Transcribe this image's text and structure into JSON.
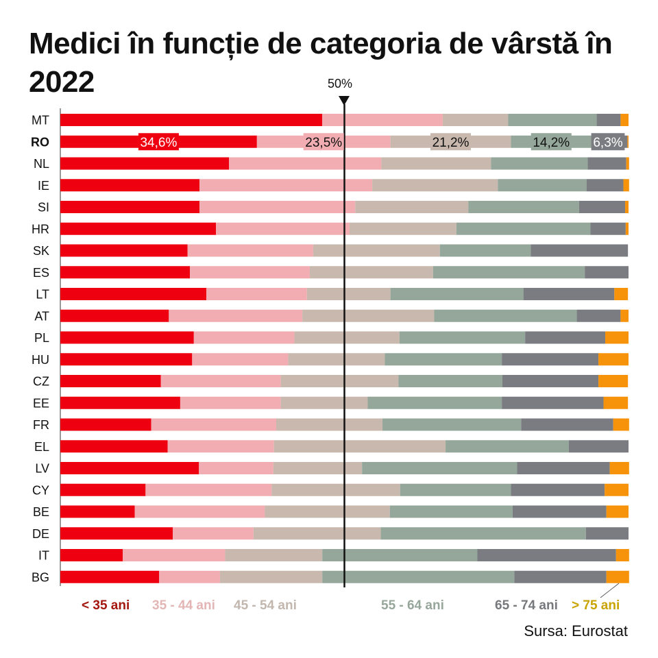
{
  "header": {
    "title": "Medici în funcție de categoria de vârstă în 2022",
    "reference_label": "50%"
  },
  "footer": {
    "source": "Sursa: Eurostat"
  },
  "chart_data": {
    "type": "bar",
    "orientation": "horizontal",
    "stacked": true,
    "normalized": true,
    "title": "Medici în funcție de categoria de vârstă în 2022",
    "xlabel": "",
    "ylabel": "",
    "xlim": [
      0,
      100
    ],
    "reference_line": {
      "value": 50,
      "label": "50%"
    },
    "grid": false,
    "legend_position": "bottom",
    "highlight_category": "RO",
    "categories": [
      "MT",
      "RO",
      "NL",
      "IE",
      "SI",
      "HR",
      "SK",
      "ES",
      "LT",
      "AT",
      "PL",
      "HU",
      "CZ",
      "EE",
      "FR",
      "EL",
      "LV",
      "CY",
      "BE",
      "DE",
      "IT",
      "BG"
    ],
    "series": [
      {
        "name": "< 35 ani",
        "color": "#ee0010",
        "legend_color": "#a3170f",
        "values": [
          46.1,
          34.6,
          29.7,
          24.5,
          24.5,
          27.4,
          22.4,
          22.8,
          25.7,
          19.1,
          23.5,
          23.2,
          17.7,
          21.1,
          16.0,
          18.9,
          24.4,
          15.0,
          13.1,
          19.8,
          11.0,
          17.4
        ]
      },
      {
        "name": "35 - 44 ani",
        "color": "#f2adb2",
        "legend_color": "#e3b6b5",
        "values": [
          21.2,
          23.5,
          26.8,
          30.4,
          27.4,
          23.5,
          22.1,
          21.1,
          17.7,
          23.5,
          17.7,
          16.9,
          21.1,
          17.7,
          22.0,
          18.7,
          13.1,
          22.2,
          22.9,
          14.2,
          18.0,
          10.7
        ]
      },
      {
        "name": "45 - 54 ani",
        "color": "#c8b8ae",
        "legend_color": "#c2b7ae",
        "values": [
          11.5,
          21.2,
          19.3,
          22.1,
          19.9,
          18.8,
          22.3,
          21.7,
          14.7,
          23.2,
          18.5,
          17.0,
          20.7,
          15.3,
          18.7,
          30.2,
          15.6,
          22.6,
          22.0,
          22.4,
          17.1,
          18.0
        ]
      },
      {
        "name": "55 - 64 ani",
        "color": "#94a79a",
        "legend_color": "#97a69a",
        "values": [
          15.6,
          14.2,
          17.0,
          15.6,
          19.5,
          23.6,
          16.0,
          26.7,
          23.4,
          25.1,
          22.1,
          20.6,
          18.3,
          23.6,
          24.4,
          21.7,
          27.3,
          19.5,
          21.6,
          36.1,
          27.3,
          33.8
        ]
      },
      {
        "name": "65 - 74 ani",
        "color": "#7a7c81",
        "legend_color": "#76787c",
        "values": [
          4.2,
          6.3,
          6.8,
          6.5,
          8.1,
          6.2,
          17.1,
          7.7,
          16.0,
          7.7,
          14.1,
          17.0,
          16.9,
          17.9,
          16.2,
          10.5,
          16.3,
          16.5,
          16.5,
          7.5,
          24.4,
          16.2
        ]
      },
      {
        "name": "> 75 ani",
        "color": "#f7930a",
        "legend_color": "#c9a300",
        "values": [
          1.4,
          0.2,
          0.5,
          1.0,
          0.6,
          0.5,
          0.0,
          0.0,
          2.4,
          1.4,
          4.1,
          5.3,
          5.2,
          4.3,
          2.8,
          0.0,
          3.4,
          4.2,
          3.9,
          0.0,
          2.3,
          4.0
        ]
      }
    ],
    "data_labels": {
      "category": "RO",
      "values": [
        "34,6%",
        "23,5%",
        "21,2%",
        "14,2%",
        "6,3%"
      ]
    }
  }
}
